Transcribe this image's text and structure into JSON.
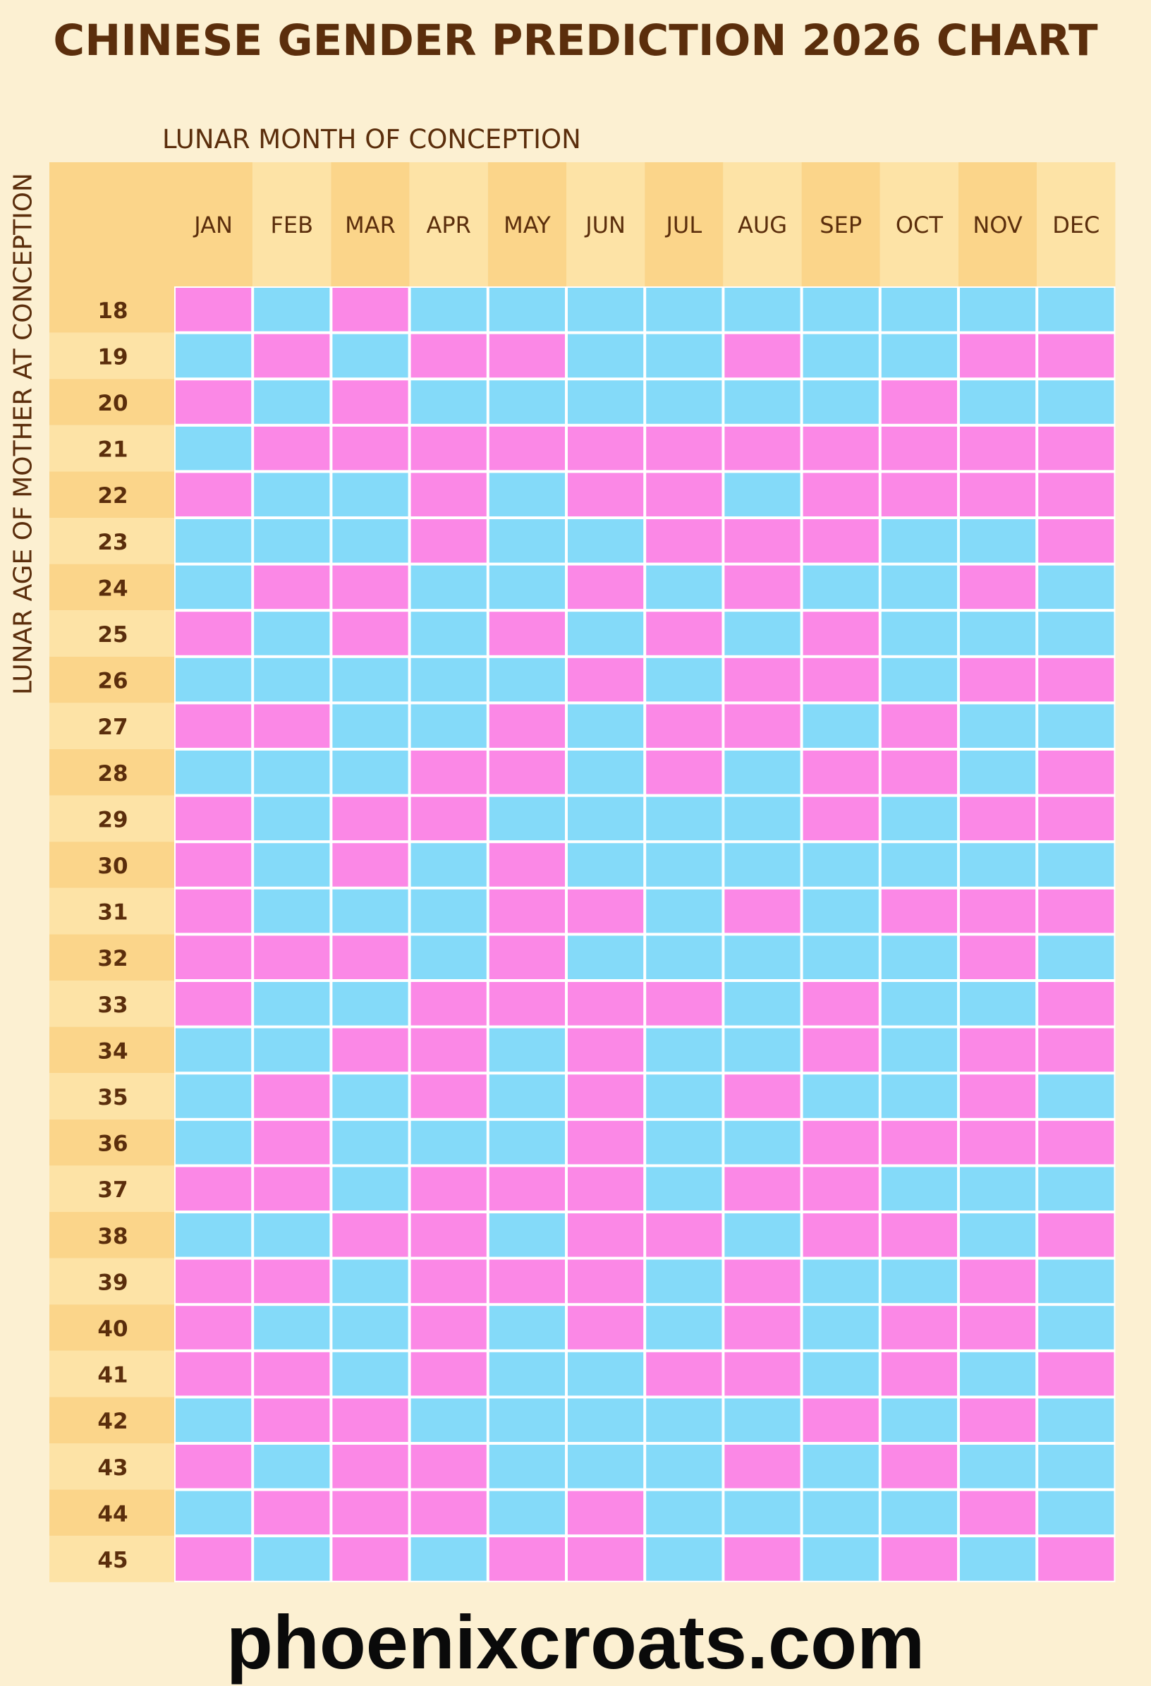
{
  "page": {
    "title": "CHINESE GENDER PREDICTION 2026 CHART",
    "footer": "phoenixcroats.com"
  },
  "colors": {
    "background": "#fcf0d2",
    "header_dark": "#fbd58a",
    "header_light": "#fde3a6",
    "girl": "#fb88e6",
    "boy": "#84daf9",
    "text": "#5b2e0c"
  },
  "chart_data": {
    "type": "table",
    "title": "CHINESE GENDER PREDICTION 2026 CHART",
    "xlabel": "LUNAR MONTH OF CONCEPTION",
    "ylabel": "LUNAR AGE OF MOTHER AT CONCEPTION",
    "columns": [
      "JAN",
      "FEB",
      "MAR",
      "APR",
      "MAY",
      "JUN",
      "JUL",
      "AUG",
      "SEP",
      "OCT",
      "NOV",
      "DEC"
    ],
    "rows": [
      18,
      19,
      20,
      21,
      22,
      23,
      24,
      25,
      26,
      27,
      28,
      29,
      30,
      31,
      32,
      33,
      34,
      35,
      36,
      37,
      38,
      39,
      40,
      41,
      42,
      43,
      44,
      45
    ],
    "value_legend": {
      "G": "pink",
      "B": "blue"
    },
    "cells": [
      [
        "G",
        "B",
        "G",
        "B",
        "B",
        "B",
        "B",
        "B",
        "B",
        "B",
        "B",
        "B"
      ],
      [
        "B",
        "G",
        "B",
        "G",
        "G",
        "B",
        "B",
        "G",
        "B",
        "B",
        "G",
        "G"
      ],
      [
        "G",
        "B",
        "G",
        "B",
        "B",
        "B",
        "B",
        "B",
        "B",
        "G",
        "B",
        "B"
      ],
      [
        "B",
        "G",
        "G",
        "G",
        "G",
        "G",
        "G",
        "G",
        "G",
        "G",
        "G",
        "G"
      ],
      [
        "G",
        "B",
        "B",
        "G",
        "B",
        "G",
        "G",
        "B",
        "G",
        "G",
        "G",
        "G"
      ],
      [
        "B",
        "B",
        "B",
        "G",
        "B",
        "B",
        "G",
        "G",
        "G",
        "B",
        "B",
        "G"
      ],
      [
        "B",
        "G",
        "G",
        "B",
        "B",
        "G",
        "B",
        "G",
        "B",
        "B",
        "G",
        "B"
      ],
      [
        "G",
        "B",
        "G",
        "B",
        "G",
        "B",
        "G",
        "B",
        "G",
        "B",
        "B",
        "B"
      ],
      [
        "B",
        "B",
        "B",
        "B",
        "B",
        "G",
        "B",
        "G",
        "G",
        "B",
        "G",
        "G"
      ],
      [
        "G",
        "G",
        "B",
        "B",
        "G",
        "B",
        "G",
        "G",
        "B",
        "G",
        "B",
        "B"
      ],
      [
        "B",
        "B",
        "B",
        "G",
        "G",
        "B",
        "G",
        "B",
        "G",
        "G",
        "B",
        "G"
      ],
      [
        "G",
        "B",
        "G",
        "G",
        "B",
        "B",
        "B",
        "B",
        "G",
        "B",
        "G",
        "G"
      ],
      [
        "G",
        "B",
        "G",
        "B",
        "G",
        "B",
        "B",
        "B",
        "B",
        "B",
        "B",
        "B"
      ],
      [
        "G",
        "B",
        "B",
        "B",
        "G",
        "G",
        "B",
        "G",
        "B",
        "G",
        "G",
        "G"
      ],
      [
        "G",
        "G",
        "G",
        "B",
        "G",
        "B",
        "B",
        "B",
        "B",
        "B",
        "G",
        "B"
      ],
      [
        "G",
        "B",
        "B",
        "G",
        "G",
        "G",
        "G",
        "B",
        "G",
        "B",
        "B",
        "G"
      ],
      [
        "B",
        "B",
        "G",
        "G",
        "B",
        "G",
        "B",
        "B",
        "G",
        "B",
        "G",
        "G"
      ],
      [
        "B",
        "G",
        "B",
        "G",
        "B",
        "G",
        "B",
        "G",
        "B",
        "B",
        "G",
        "B"
      ],
      [
        "B",
        "G",
        "B",
        "B",
        "B",
        "G",
        "B",
        "B",
        "G",
        "G",
        "G",
        "G"
      ],
      [
        "G",
        "G",
        "B",
        "G",
        "G",
        "G",
        "B",
        "G",
        "G",
        "B",
        "B",
        "B"
      ],
      [
        "B",
        "B",
        "G",
        "G",
        "B",
        "G",
        "G",
        "B",
        "G",
        "G",
        "B",
        "G"
      ],
      [
        "G",
        "G",
        "B",
        "G",
        "G",
        "G",
        "B",
        "G",
        "B",
        "B",
        "G",
        "B"
      ],
      [
        "G",
        "B",
        "B",
        "G",
        "B",
        "G",
        "B",
        "G",
        "B",
        "G",
        "G",
        "B"
      ],
      [
        "G",
        "G",
        "B",
        "G",
        "B",
        "B",
        "G",
        "G",
        "B",
        "G",
        "B",
        "G"
      ],
      [
        "B",
        "G",
        "G",
        "B",
        "B",
        "B",
        "B",
        "B",
        "G",
        "B",
        "G",
        "B"
      ],
      [
        "G",
        "B",
        "G",
        "G",
        "B",
        "B",
        "B",
        "G",
        "B",
        "G",
        "B",
        "B"
      ],
      [
        "B",
        "G",
        "G",
        "G",
        "B",
        "G",
        "B",
        "B",
        "B",
        "B",
        "G",
        "B"
      ],
      [
        "G",
        "B",
        "G",
        "B",
        "G",
        "G",
        "B",
        "G",
        "B",
        "G",
        "B",
        "G"
      ]
    ]
  }
}
